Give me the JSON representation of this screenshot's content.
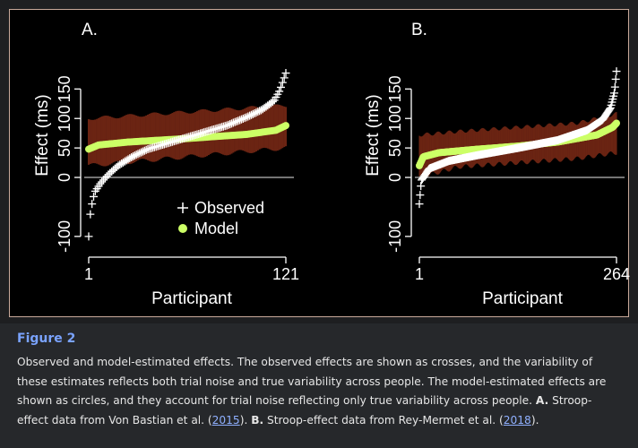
{
  "chart_data": [
    {
      "type": "scatter",
      "panel_label": "A.",
      "xlabel": "Participant",
      "ylabel": "Effect (ms)",
      "x_ticks": [
        "1",
        "121"
      ],
      "y_ticks": [
        "-100",
        "0",
        "50",
        "100",
        "150"
      ],
      "n": 121,
      "ylim": [
        -120,
        190
      ],
      "reference_line": 0,
      "series": [
        {
          "name": "Observed",
          "marker": "cross",
          "color": "#ffffff",
          "quantiles": [
            [
              0,
              -100
            ],
            [
              0.01,
              -55
            ],
            [
              0.03,
              -25
            ],
            [
              0.06,
              -10
            ],
            [
              0.1,
              5
            ],
            [
              0.15,
              20
            ],
            [
              0.22,
              35
            ],
            [
              0.3,
              48
            ],
            [
              0.4,
              58
            ],
            [
              0.5,
              68
            ],
            [
              0.6,
              78
            ],
            [
              0.7,
              88
            ],
            [
              0.8,
              102
            ],
            [
              0.88,
              115
            ],
            [
              0.94,
              130
            ],
            [
              0.97,
              148
            ],
            [
              1,
              177
            ]
          ]
        },
        {
          "name": "Model",
          "marker": "circle",
          "color": "#ccff66",
          "quantiles": [
            [
              0,
              48
            ],
            [
              0.05,
              55
            ],
            [
              0.2,
              60
            ],
            [
              0.5,
              66
            ],
            [
              0.8,
              73
            ],
            [
              0.95,
              80
            ],
            [
              1,
              88
            ]
          ]
        },
        {
          "name": "Model interval",
          "type": "band",
          "color": "#6b2413",
          "lower": [
            [
              0,
              20
            ],
            [
              1,
              50
            ]
          ],
          "upper": [
            [
              0,
              100
            ],
            [
              1,
              122
            ]
          ]
        }
      ],
      "legend": [
        "Observed",
        "Model"
      ],
      "legend_position": "lower-right"
    },
    {
      "type": "scatter",
      "panel_label": "B.",
      "xlabel": "Participant",
      "ylabel": "Effect (ms)",
      "x_ticks": [
        "1",
        "264"
      ],
      "y_ticks": [
        "-100",
        "0",
        "50",
        "100",
        "150"
      ],
      "n": 264,
      "ylim": [
        -120,
        190
      ],
      "reference_line": 0,
      "series": [
        {
          "name": "Observed",
          "marker": "cross",
          "color": "#ffffff",
          "quantiles": [
            [
              0,
              -45
            ],
            [
              0.01,
              -5
            ],
            [
              0.05,
              15
            ],
            [
              0.15,
              28
            ],
            [
              0.3,
              38
            ],
            [
              0.5,
              50
            ],
            [
              0.7,
              63
            ],
            [
              0.85,
              80
            ],
            [
              0.93,
              98
            ],
            [
              0.97,
              118
            ],
            [
              0.99,
              145
            ],
            [
              1,
              180
            ]
          ]
        },
        {
          "name": "Model",
          "marker": "circle",
          "color": "#ccff66",
          "quantiles": [
            [
              0,
              20
            ],
            [
              0.02,
              35
            ],
            [
              0.1,
              42
            ],
            [
              0.3,
              48
            ],
            [
              0.5,
              53
            ],
            [
              0.7,
              60
            ],
            [
              0.9,
              72
            ],
            [
              0.98,
              85
            ],
            [
              1,
              92
            ]
          ]
        },
        {
          "name": "Model interval",
          "type": "band",
          "color": "#6b2413",
          "lower": [
            [
              0,
              0
            ],
            [
              0.2,
              18
            ],
            [
              0.8,
              32
            ],
            [
              1,
              42
            ]
          ],
          "upper": [
            [
              0,
              72
            ],
            [
              0.2,
              78
            ],
            [
              0.8,
              92
            ],
            [
              1,
              108
            ]
          ]
        }
      ],
      "legend": [],
      "legend_position": ""
    }
  ],
  "caption": {
    "title": "Figure 2",
    "text_1": "Observed and model-estimated effects. The observed effects are shown as crosses, and the variability of these estimates reflects both trial noise and true variability across people. The model-estimated effects are shown as circles, and they account for trial noise reflecting only true variability across people. ",
    "label_a": "A.",
    "text_2": " Stroop-effect data from Von Bastian et al. (",
    "cite_a": "2015",
    "text_3": "). ",
    "label_b": "B.",
    "text_4": " Stroop-effect data from Rey-Mermet et al. (",
    "cite_b": "2018",
    "text_5": ")."
  },
  "colors": {
    "frame_border": "#c9a99a",
    "caption_title": "#7aa3ff",
    "link": "#8fb0ff"
  }
}
